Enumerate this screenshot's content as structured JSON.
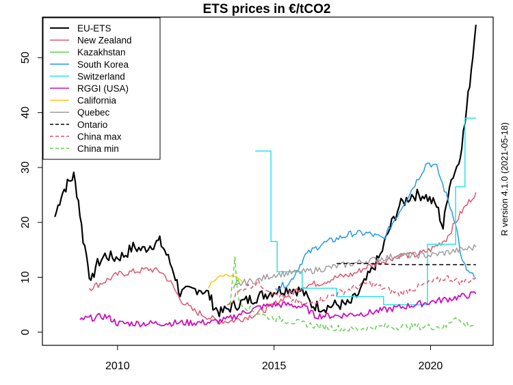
{
  "chart_data": {
    "type": "line",
    "title": "ETS prices in €/tCO2",
    "side_note": "R version 4.1.0 (2021-05-18)",
    "xlim": [
      2007.6,
      2022.0
    ],
    "ylim": [
      -2.4,
      57.4
    ],
    "x_ticks": [
      2010,
      2015,
      2020
    ],
    "y_ticks": [
      0,
      10,
      20,
      30,
      40,
      50
    ],
    "x_tick_labels": [
      "2010",
      "2015",
      "2020"
    ],
    "y_tick_labels": [
      "0",
      "10",
      "20",
      "30",
      "40",
      "50"
    ],
    "grid": false,
    "legend_position": "top-left",
    "series": [
      {
        "name": "EU-ETS",
        "color": "#000000",
        "dash": "solid",
        "width": 2.2,
        "points": [
          [
            2008.0,
            21
          ],
          [
            2008.2,
            25
          ],
          [
            2008.4,
            27
          ],
          [
            2008.6,
            28.5
          ],
          [
            2008.75,
            24
          ],
          [
            2008.9,
            17
          ],
          [
            2009.05,
            13
          ],
          [
            2009.15,
            8.5
          ],
          [
            2009.3,
            12
          ],
          [
            2009.6,
            14
          ],
          [
            2009.9,
            13.5
          ],
          [
            2010.2,
            14
          ],
          [
            2010.5,
            15.5
          ],
          [
            2010.8,
            15
          ],
          [
            2011.1,
            16
          ],
          [
            2011.35,
            16.5
          ],
          [
            2011.5,
            15
          ],
          [
            2011.8,
            11
          ],
          [
            2012.0,
            7
          ],
          [
            2012.3,
            7.5
          ],
          [
            2012.6,
            8
          ],
          [
            2012.9,
            7
          ],
          [
            2013.1,
            4.5
          ],
          [
            2013.3,
            3.5
          ],
          [
            2013.6,
            4.5
          ],
          [
            2014.0,
            5.5
          ],
          [
            2014.5,
            6.5
          ],
          [
            2015.0,
            7.5
          ],
          [
            2015.5,
            8
          ],
          [
            2015.9,
            7.5
          ],
          [
            2016.2,
            5
          ],
          [
            2016.6,
            4.5
          ],
          [
            2017.0,
            5
          ],
          [
            2017.4,
            5
          ],
          [
            2017.7,
            7
          ],
          [
            2018.0,
            10
          ],
          [
            2018.4,
            14
          ],
          [
            2018.7,
            19
          ],
          [
            2019.0,
            23
          ],
          [
            2019.4,
            25
          ],
          [
            2019.8,
            25
          ],
          [
            2020.2,
            23
          ],
          [
            2020.4,
            19
          ],
          [
            2020.6,
            27
          ],
          [
            2020.9,
            31
          ],
          [
            2021.1,
            38
          ],
          [
            2021.3,
            48
          ],
          [
            2021.45,
            56
          ]
        ]
      },
      {
        "name": "New Zealand",
        "color": "#DF536B",
        "dash": "solid",
        "width": 1.5,
        "points": [
          [
            2009.1,
            8
          ],
          [
            2009.5,
            9
          ],
          [
            2010.0,
            10.5
          ],
          [
            2010.5,
            11
          ],
          [
            2011.0,
            11.5
          ],
          [
            2011.4,
            11
          ],
          [
            2011.7,
            9
          ],
          [
            2012.0,
            6
          ],
          [
            2012.4,
            4
          ],
          [
            2012.8,
            3
          ],
          [
            2013.2,
            2
          ],
          [
            2013.6,
            2
          ],
          [
            2014.0,
            2.5
          ],
          [
            2014.5,
            3.5
          ],
          [
            2015.0,
            5
          ],
          [
            2015.5,
            7
          ],
          [
            2016.0,
            8.5
          ],
          [
            2016.5,
            9
          ],
          [
            2017.0,
            10
          ],
          [
            2017.5,
            10.5
          ],
          [
            2018.0,
            12
          ],
          [
            2018.5,
            13
          ],
          [
            2019.0,
            14
          ],
          [
            2019.5,
            14
          ],
          [
            2020.0,
            15
          ],
          [
            2020.5,
            17
          ],
          [
            2021.0,
            22
          ],
          [
            2021.45,
            25.5
          ]
        ]
      },
      {
        "name": "Kazakhstan",
        "color": "#61D04F",
        "dash": "solid",
        "width": 1.5,
        "points": [
          [
            2013.7,
            8
          ],
          [
            2013.85,
            9.5
          ],
          [
            2013.95,
            8.5
          ]
        ]
      },
      {
        "name": "South Korea",
        "color": "#2297E6",
        "dash": "solid",
        "width": 1.5,
        "points": [
          [
            2015.05,
            8
          ],
          [
            2015.5,
            9
          ],
          [
            2016.0,
            14
          ],
          [
            2016.5,
            16
          ],
          [
            2017.0,
            17
          ],
          [
            2017.5,
            18
          ],
          [
            2018.0,
            18
          ],
          [
            2018.5,
            17
          ],
          [
            2019.0,
            22
          ],
          [
            2019.5,
            27
          ],
          [
            2019.9,
            31
          ],
          [
            2020.2,
            30
          ],
          [
            2020.5,
            25
          ],
          [
            2020.8,
            20
          ],
          [
            2021.0,
            13
          ],
          [
            2021.2,
            11
          ],
          [
            2021.4,
            10
          ]
        ]
      },
      {
        "name": "Switzerland",
        "color": "#28E2E5",
        "dash": "solid",
        "width": 1.5,
        "points": [
          [
            2014.4,
            33
          ],
          [
            2014.9,
            33
          ],
          [
            2014.9,
            16.5
          ],
          [
            2015.1,
            16.5
          ],
          [
            2015.1,
            11
          ],
          [
            2015.9,
            11
          ],
          [
            2015.9,
            8
          ],
          [
            2017.0,
            8
          ],
          [
            2017.0,
            6.5
          ],
          [
            2018.5,
            6.5
          ],
          [
            2018.5,
            5
          ],
          [
            2019.9,
            5
          ],
          [
            2019.9,
            16
          ],
          [
            2020.8,
            16
          ],
          [
            2020.8,
            26.5
          ],
          [
            2021.1,
            26.5
          ],
          [
            2021.1,
            39
          ],
          [
            2021.45,
            39
          ]
        ]
      },
      {
        "name": "RGGI (USA)",
        "color": "#CD0BBC",
        "dash": "solid",
        "width": 1.8,
        "points": [
          [
            2008.8,
            2.3
          ],
          [
            2009.2,
            2.6
          ],
          [
            2009.6,
            2.9
          ],
          [
            2009.8,
            2.4
          ],
          [
            2010.0,
            1.6
          ],
          [
            2011.0,
            1.6
          ],
          [
            2012.0,
            1.7
          ],
          [
            2013.0,
            1.8
          ],
          [
            2013.5,
            2.3
          ],
          [
            2014.0,
            3.5
          ],
          [
            2014.5,
            4.5
          ],
          [
            2015.0,
            5
          ],
          [
            2015.5,
            5
          ],
          [
            2016.0,
            4.5
          ],
          [
            2016.3,
            3
          ],
          [
            2017.0,
            3
          ],
          [
            2018.0,
            3.5
          ],
          [
            2019.0,
            4.5
          ],
          [
            2020.0,
            5.5
          ],
          [
            2021.0,
            6.5
          ],
          [
            2021.45,
            7
          ]
        ]
      },
      {
        "name": "California",
        "color": "#F5C710",
        "dash": "solid",
        "width": 1.5,
        "points": [
          [
            2012.9,
            8
          ],
          [
            2013.0,
            9
          ],
          [
            2013.2,
            10
          ],
          [
            2013.5,
            10.5
          ],
          [
            2013.8,
            10
          ],
          [
            2014.0,
            9
          ]
        ]
      },
      {
        "name": "Quebec",
        "color": "#9E9E9E",
        "dash": "solid",
        "width": 1.5,
        "points": [
          [
            2013.7,
            8
          ],
          [
            2014.0,
            9
          ],
          [
            2014.5,
            9.5
          ],
          [
            2015.0,
            10.5
          ],
          [
            2016.0,
            11
          ],
          [
            2017.0,
            12
          ],
          [
            2018.0,
            13
          ],
          [
            2019.0,
            14
          ],
          [
            2020.0,
            14
          ],
          [
            2020.5,
            14.5
          ],
          [
            2021.0,
            15
          ],
          [
            2021.45,
            15.5
          ]
        ]
      },
      {
        "name": "Ontario",
        "color": "#000000",
        "dash": "dashed",
        "width": 1.5,
        "points": [
          [
            2017.0,
            12.5
          ],
          [
            2017.5,
            12.5
          ],
          [
            2018.0,
            12.5
          ],
          [
            2019.0,
            12.3
          ],
          [
            2020.0,
            12.3
          ],
          [
            2021.45,
            12.3
          ]
        ]
      },
      {
        "name": "China max",
        "color": "#DF536B",
        "dash": "dashed",
        "width": 1.5,
        "points": [
          [
            2013.5,
            5
          ],
          [
            2014.0,
            8
          ],
          [
            2014.5,
            9
          ],
          [
            2015.0,
            7
          ],
          [
            2015.5,
            6
          ],
          [
            2016.0,
            5
          ],
          [
            2016.5,
            6
          ],
          [
            2017.0,
            7
          ],
          [
            2017.5,
            8
          ],
          [
            2018.0,
            9
          ],
          [
            2018.5,
            8
          ],
          [
            2019.0,
            7
          ],
          [
            2019.5,
            8
          ],
          [
            2020.0,
            9
          ],
          [
            2020.5,
            10
          ],
          [
            2021.0,
            9
          ],
          [
            2021.45,
            10
          ]
        ]
      },
      {
        "name": "China min",
        "color": "#61D04F",
        "dash": "dashed",
        "width": 1.5,
        "points": [
          [
            2013.6,
            5
          ],
          [
            2013.75,
            14
          ],
          [
            2013.85,
            6
          ],
          [
            2014.0,
            5
          ],
          [
            2014.3,
            4
          ],
          [
            2014.7,
            3
          ],
          [
            2015.0,
            2.5
          ],
          [
            2015.5,
            2
          ],
          [
            2016.0,
            1.5
          ],
          [
            2016.5,
            1
          ],
          [
            2017.0,
            0.8
          ],
          [
            2017.5,
            0.5
          ],
          [
            2018.0,
            0.8
          ],
          [
            2018.5,
            1
          ],
          [
            2019.0,
            1
          ],
          [
            2019.5,
            1
          ],
          [
            2020.0,
            1
          ],
          [
            2020.5,
            1
          ],
          [
            2020.8,
            3
          ],
          [
            2021.0,
            1.5
          ],
          [
            2021.45,
            1.2
          ]
        ]
      }
    ]
  }
}
